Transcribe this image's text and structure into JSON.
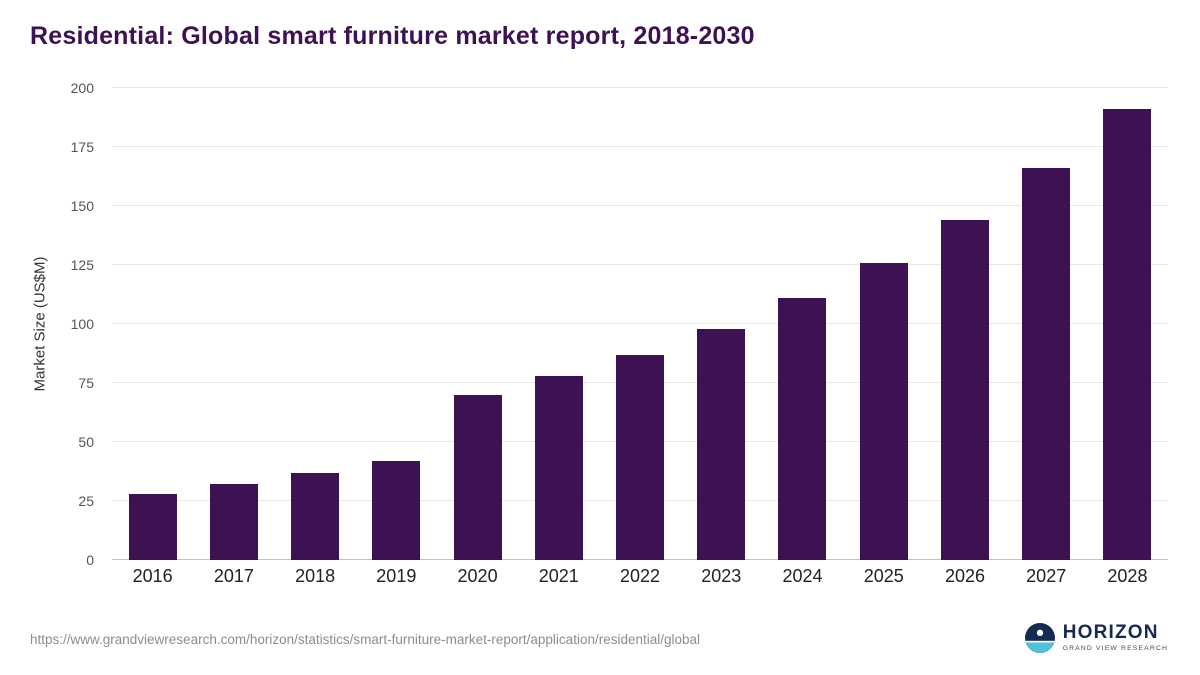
{
  "title": "Residential: Global smart furniture market report, 2018-2030",
  "chart_data": {
    "type": "bar",
    "title": "Residential: Global smart furniture market report, 2018-2030",
    "categories": [
      "2016",
      "2017",
      "2018",
      "2019",
      "2020",
      "2021",
      "2022",
      "2023",
      "2024",
      "2025",
      "2026",
      "2027",
      "2028"
    ],
    "values": [
      28,
      32,
      37,
      42,
      70,
      78,
      87,
      98,
      111,
      126,
      144,
      166,
      191
    ],
    "xlabel": "",
    "ylabel": "Market Size (US$M)",
    "ylim": [
      0,
      200
    ],
    "yticks": [
      0,
      25,
      50,
      75,
      100,
      125,
      150,
      175,
      200
    ],
    "grid": true,
    "legend": false,
    "bar_color": "#3e1153"
  },
  "colors": {
    "title": "#3e1153",
    "bar": "#3e1153",
    "gridline": "#e7e7e7",
    "logo_navy": "#152a52",
    "logo_teal": "#4fc1d8"
  },
  "footer": {
    "source_url": "https://www.grandviewresearch.com/horizon/statistics/smart-furniture-market-report/application/residential/global",
    "logo_title": "HORIZON",
    "logo_subtitle": "GRAND VIEW RESEARCH"
  }
}
